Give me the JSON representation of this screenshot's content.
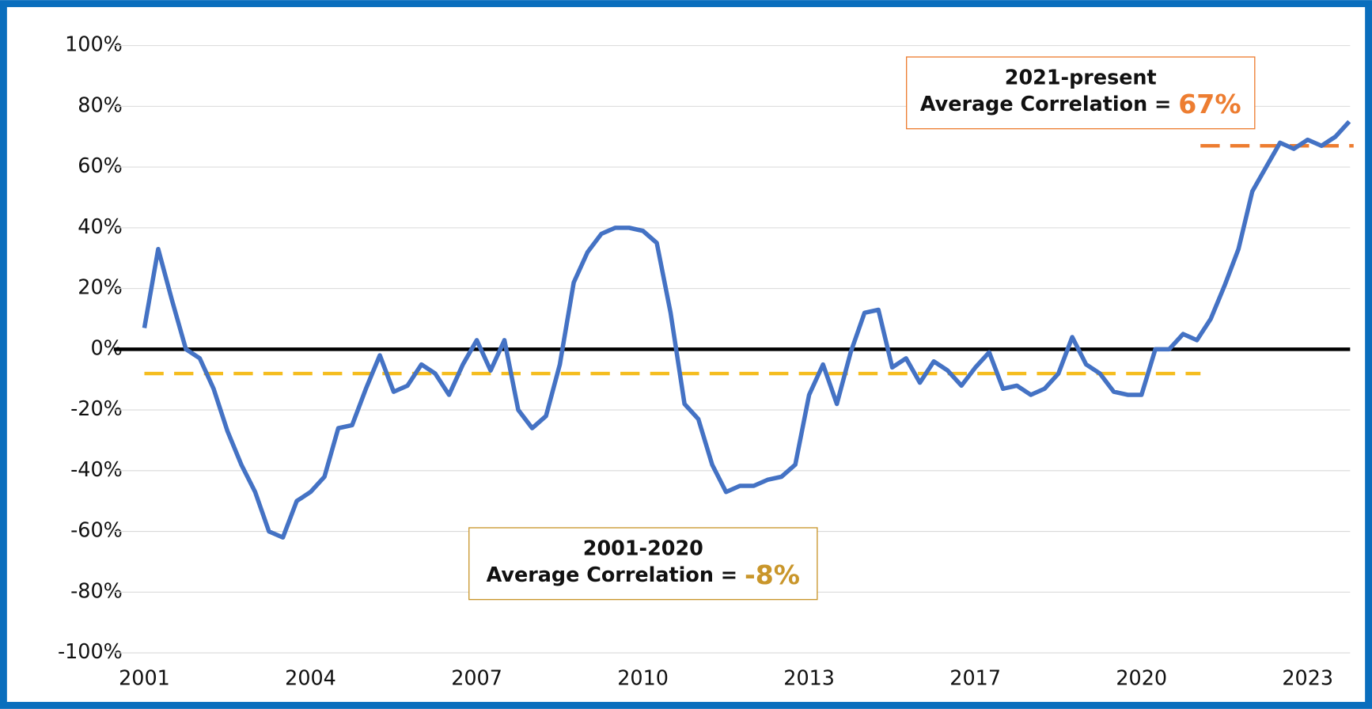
{
  "chart_data": {
    "type": "line",
    "color": "#4472c4",
    "categories": [
      "2001",
      null,
      null,
      null,
      null,
      null,
      null,
      null,
      null,
      null,
      null,
      null,
      "2004",
      null,
      null,
      null,
      null,
      null,
      null,
      null,
      null,
      null,
      null,
      null,
      "2007",
      null,
      null,
      null,
      null,
      null,
      null,
      null,
      null,
      null,
      null,
      null,
      "2010",
      null,
      null,
      null,
      null,
      null,
      null,
      null,
      null,
      null,
      null,
      null,
      "2013",
      null,
      null,
      null,
      null,
      null,
      null,
      null,
      null,
      null,
      null,
      null,
      "2017",
      null,
      null,
      null,
      null,
      null,
      null,
      null,
      null,
      null,
      null,
      null,
      "2020",
      null,
      null,
      null,
      null,
      null,
      null,
      null,
      null,
      null,
      null,
      null,
      "2023",
      null,
      null,
      null
    ],
    "values": [
      7,
      33,
      16,
      0,
      -3,
      -13,
      -27,
      -38,
      -47,
      -60,
      -62,
      -50,
      -47,
      -42,
      -26,
      -25,
      -13,
      -2,
      -14,
      -12,
      -5,
      -8,
      -15,
      -5,
      3,
      -7,
      3,
      -20,
      -26,
      -22,
      -5,
      22,
      32,
      38,
      40,
      40,
      39,
      35,
      12,
      -18,
      -23,
      -38,
      -47,
      -45,
      -45,
      -43,
      -42,
      -38,
      -15,
      -5,
      -18,
      -1,
      12,
      13,
      -6,
      -3,
      -11,
      -4,
      -7,
      -12,
      -6,
      -1,
      -13,
      -12,
      -15,
      -13,
      -8,
      4,
      -5,
      -8,
      -14,
      -15,
      -15,
      0,
      0,
      5,
      3,
      10,
      21,
      33,
      52,
      60,
      68,
      66,
      69,
      67,
      70,
      75
    ],
    "ylim": [
      -100,
      100
    ],
    "yticks": [
      {
        "value": -100,
        "label": "-100%"
      },
      {
        "value": -80,
        "label": "-80%"
      },
      {
        "value": -60,
        "label": "-60%"
      },
      {
        "value": -40,
        "label": "-40%"
      },
      {
        "value": -20,
        "label": "-20%"
      },
      {
        "value": 0,
        "label": "0%"
      },
      {
        "value": 20,
        "label": "20%"
      },
      {
        "value": 40,
        "label": "40%"
      },
      {
        "value": 60,
        "label": "60%"
      },
      {
        "value": 80,
        "label": "80%"
      },
      {
        "value": 100,
        "label": "100%"
      }
    ],
    "grid": true,
    "hlines": [
      {
        "value": -8,
        "color": "#f5bd1f"
      },
      {
        "value": 67,
        "color": "#ed7d31"
      }
    ],
    "annotations": [
      {
        "title": "2001-2020",
        "text": "Average Correlation =",
        "value_label": "-8%",
        "color": "#c9962b"
      },
      {
        "title": "2021-present",
        "text": "Average Correlation =",
        "value_label": "67%",
        "color": "#ed7d31"
      }
    ]
  }
}
